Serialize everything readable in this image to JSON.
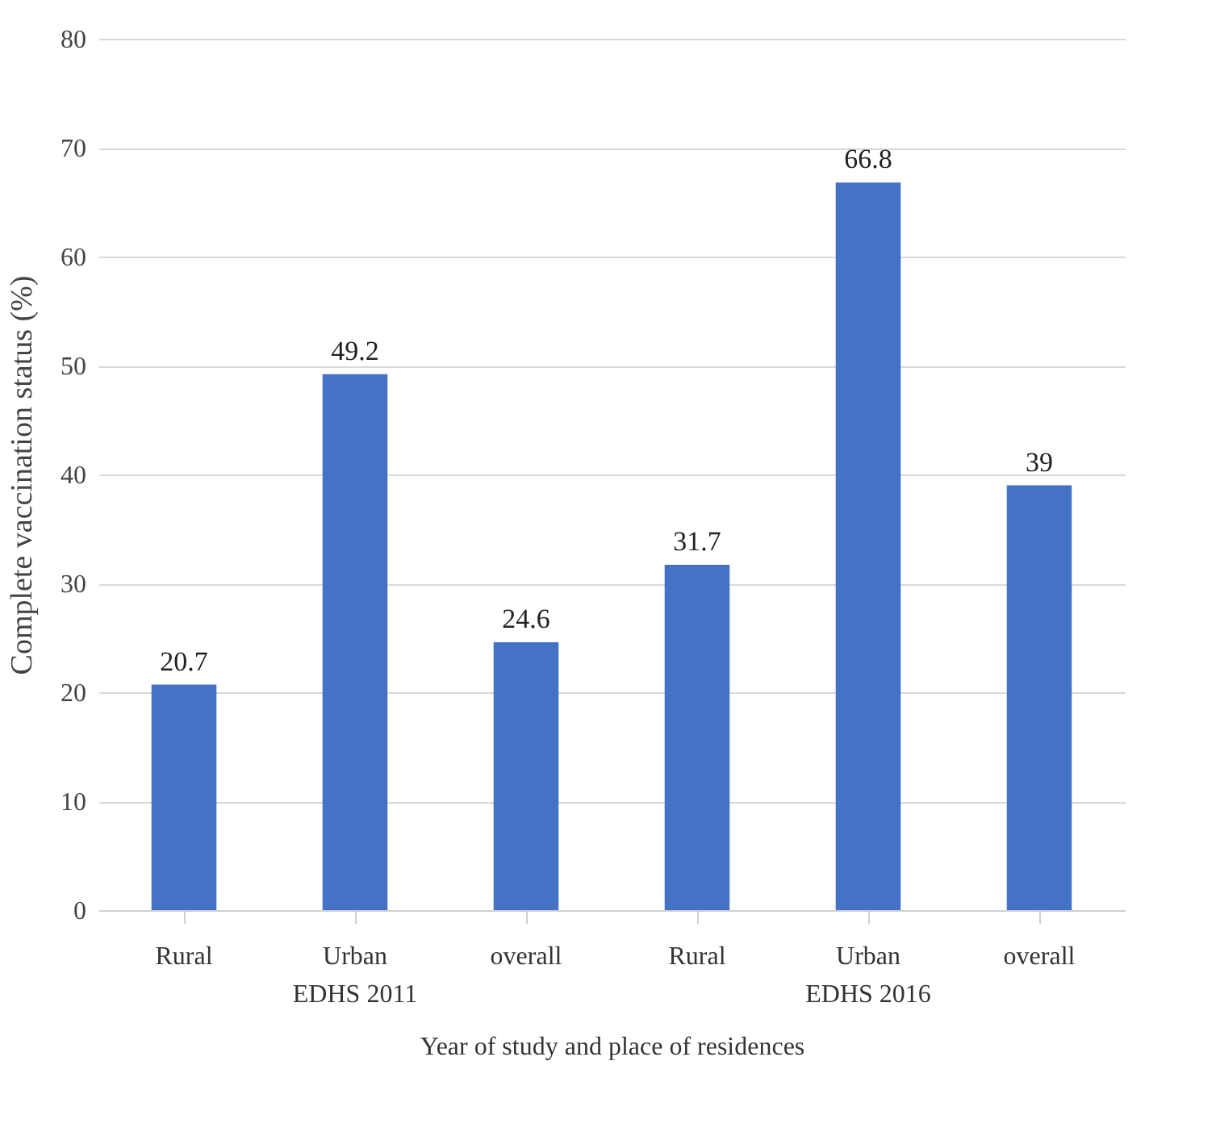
{
  "chart_data": {
    "type": "bar",
    "xlabel": "Year of study and place of residences",
    "ylabel": "Complete vaccination  status (%)",
    "categories": [
      "Rural",
      "Urban",
      "overall",
      "Rural",
      "Urban",
      "overall"
    ],
    "values": [
      20.7,
      49.2,
      24.6,
      31.7,
      66.8,
      39
    ],
    "color": "#4472c4",
    "ylim": [
      0,
      80
    ],
    "yticks": [
      0,
      10,
      20,
      30,
      40,
      50,
      60,
      70,
      80
    ],
    "grid": "y",
    "data_labels": true,
    "annotations": [
      "EDHS 2011",
      "EDHS 2016"
    ]
  }
}
